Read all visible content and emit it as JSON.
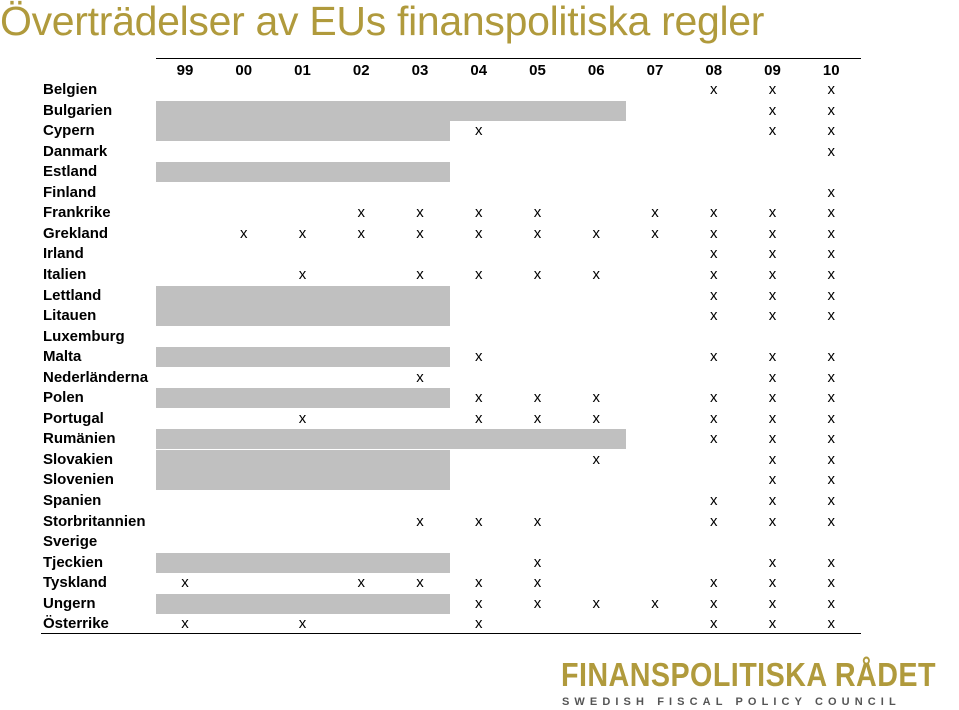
{
  "title": "Överträdelser av EUs finanspolitiska regler",
  "years": [
    "99",
    "00",
    "01",
    "02",
    "03",
    "04",
    "05",
    "06",
    "07",
    "08",
    "09",
    "10"
  ],
  "colors": {
    "title": "#b09a3c",
    "shade": "#c0c0c0",
    "logo_sub": "#555555"
  },
  "rows": [
    {
      "country": "Belgien",
      "shade_years": 0,
      "marks": [
        "",
        "",
        "",
        "",
        "",
        "",
        "",
        "",
        "",
        "x",
        "x",
        "x"
      ]
    },
    {
      "country": "Bulgarien",
      "shade_years": 8,
      "marks": [
        "",
        "",
        "",
        "",
        "",
        "",
        "",
        "",
        "",
        "",
        "x",
        "x"
      ]
    },
    {
      "country": "Cypern",
      "shade_years": 5,
      "marks": [
        "",
        "",
        "",
        "",
        "",
        "x",
        "",
        "",
        "",
        "",
        "x",
        "x"
      ]
    },
    {
      "country": "Danmark",
      "shade_years": 0,
      "marks": [
        "",
        "",
        "",
        "",
        "",
        "",
        "",
        "",
        "",
        "",
        "",
        "x"
      ]
    },
    {
      "country": "Estland",
      "shade_years": 5,
      "marks": [
        "",
        "",
        "",
        "",
        "",
        "",
        "",
        "",
        "",
        "",
        "",
        ""
      ]
    },
    {
      "country": "Finland",
      "shade_years": 0,
      "marks": [
        "",
        "",
        "",
        "",
        "",
        "",
        "",
        "",
        "",
        "",
        "",
        "x"
      ]
    },
    {
      "country": "Frankrike",
      "shade_years": 0,
      "marks": [
        "",
        "",
        "",
        "x",
        "x",
        "x",
        "x",
        "",
        "x",
        "x",
        "x",
        "x"
      ]
    },
    {
      "country": "Grekland",
      "shade_years": 0,
      "marks": [
        "",
        "x",
        "x",
        "x",
        "x",
        "x",
        "x",
        "x",
        "x",
        "x",
        "x",
        "x"
      ]
    },
    {
      "country": "Irland",
      "shade_years": 0,
      "marks": [
        "",
        "",
        "",
        "",
        "",
        "",
        "",
        "",
        "",
        "x",
        "x",
        "x"
      ]
    },
    {
      "country": "Italien",
      "shade_years": 0,
      "marks": [
        "",
        "",
        "x",
        "",
        "x",
        "x",
        "x",
        "x",
        "",
        "x",
        "x",
        "x"
      ]
    },
    {
      "country": "Lettland",
      "shade_years": 5,
      "marks": [
        "",
        "",
        "",
        "",
        "",
        "",
        "",
        "",
        "",
        "x",
        "x",
        "x"
      ]
    },
    {
      "country": "Litauen",
      "shade_years": 5,
      "marks": [
        "",
        "",
        "",
        "",
        "",
        "",
        "",
        "",
        "",
        "x",
        "x",
        "x"
      ]
    },
    {
      "country": "Luxemburg",
      "shade_years": 0,
      "marks": [
        "",
        "",
        "",
        "",
        "",
        "",
        "",
        "",
        "",
        "",
        "",
        ""
      ]
    },
    {
      "country": "Malta",
      "shade_years": 5,
      "marks": [
        "",
        "",
        "",
        "",
        "",
        "x",
        "",
        "",
        "",
        "x",
        "x",
        "x"
      ]
    },
    {
      "country": "Nederländerna",
      "shade_years": 0,
      "marks": [
        "",
        "",
        "",
        "",
        "x",
        "",
        "",
        "",
        "",
        "",
        "x",
        "x"
      ]
    },
    {
      "country": "Polen",
      "shade_years": 5,
      "marks": [
        "",
        "",
        "",
        "",
        "",
        "x",
        "x",
        "x",
        "",
        "x",
        "x",
        "x"
      ]
    },
    {
      "country": "Portugal",
      "shade_years": 0,
      "marks": [
        "",
        "",
        "x",
        "",
        "",
        "x",
        "x",
        "x",
        "",
        "x",
        "x",
        "x"
      ]
    },
    {
      "country": "Rumänien",
      "shade_years": 8,
      "marks": [
        "",
        "",
        "",
        "",
        "",
        "",
        "",
        "",
        "",
        "x",
        "x",
        "x"
      ]
    },
    {
      "country": "Slovakien",
      "shade_years": 5,
      "marks": [
        "",
        "",
        "",
        "",
        "",
        "",
        "",
        "x",
        "",
        "",
        "x",
        "x"
      ]
    },
    {
      "country": "Slovenien",
      "shade_years": 5,
      "marks": [
        "",
        "",
        "",
        "",
        "",
        "",
        "",
        "",
        "",
        "",
        "x",
        "x"
      ]
    },
    {
      "country": "Spanien",
      "shade_years": 0,
      "marks": [
        "",
        "",
        "",
        "",
        "",
        "",
        "",
        "",
        "",
        "x",
        "x",
        "x"
      ]
    },
    {
      "country": "Storbritannien",
      "shade_years": 0,
      "marks": [
        "",
        "",
        "",
        "",
        "x",
        "x",
        "x",
        "",
        "",
        "x",
        "x",
        "x"
      ]
    },
    {
      "country": "Sverige",
      "shade_years": 0,
      "marks": [
        "",
        "",
        "",
        "",
        "",
        "",
        "",
        "",
        "",
        "",
        "",
        ""
      ]
    },
    {
      "country": "Tjeckien",
      "shade_years": 5,
      "marks": [
        "",
        "",
        "",
        "",
        "",
        "",
        "x",
        "",
        "",
        "",
        "x",
        "x"
      ]
    },
    {
      "country": "Tyskland",
      "shade_years": 0,
      "marks": [
        "x",
        "",
        "",
        "x",
        "x",
        "x",
        "x",
        "",
        "",
        "x",
        "x",
        "x"
      ]
    },
    {
      "country": "Ungern",
      "shade_years": 5,
      "marks": [
        "",
        "",
        "",
        "",
        "",
        "x",
        "x",
        "x",
        "x",
        "x",
        "x",
        "x"
      ]
    },
    {
      "country": "Österrike",
      "shade_years": 0,
      "marks": [
        "x",
        "",
        "x",
        "",
        "",
        "x",
        "",
        "",
        "",
        "x",
        "x",
        "x"
      ]
    }
  ],
  "logo": {
    "name": "FINANSPOLITISKA RÅDET",
    "subtitle": "SWEDISH FISCAL POLICY COUNCIL"
  }
}
